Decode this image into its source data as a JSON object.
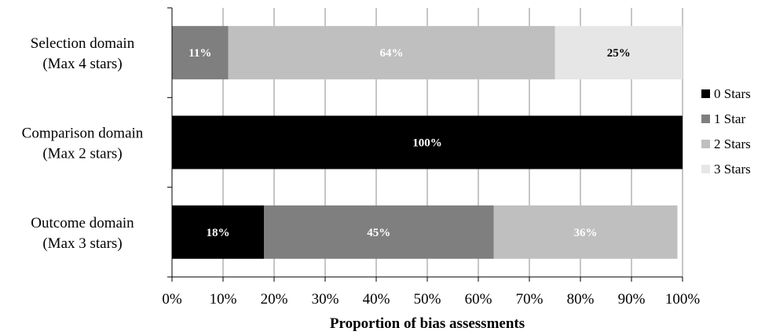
{
  "chart_data": {
    "type": "bar",
    "orientation": "horizontal",
    "stacked": true,
    "categories": [
      [
        "Selection domain",
        "(Max 4 stars)"
      ],
      [
        "Comparison domain",
        "(Max 2 stars)"
      ],
      [
        "Outcome domain",
        "(Max 3 stars)"
      ]
    ],
    "series": [
      {
        "name": "0 Stars",
        "color": "#000000",
        "label_color": "#ffffff",
        "values": [
          0,
          100,
          18
        ],
        "labels": [
          "",
          "100%",
          "18%"
        ]
      },
      {
        "name": "1 Star",
        "color": "#7f7f7f",
        "label_color": "#ffffff",
        "values": [
          11,
          0,
          45
        ],
        "labels": [
          "11%",
          "",
          "45%"
        ]
      },
      {
        "name": "2 Stars",
        "color": "#bfbfbf",
        "label_color": "#ffffff",
        "values": [
          64,
          0,
          36
        ],
        "labels": [
          "64%",
          "",
          "36%"
        ]
      },
      {
        "name": "3 Stars",
        "color": "#e6e6e6",
        "label_color": "#000000",
        "values": [
          25,
          0,
          0
        ],
        "labels": [
          "25%",
          "",
          ""
        ]
      }
    ],
    "xlim": [
      0,
      100
    ],
    "xticks": [
      "0%",
      "10%",
      "20%",
      "30%",
      "40%",
      "50%",
      "60%",
      "70%",
      "80%",
      "90%",
      "100%"
    ],
    "xlabel": "Proportion of bias assessments",
    "grid": true,
    "legend_position": "right"
  }
}
